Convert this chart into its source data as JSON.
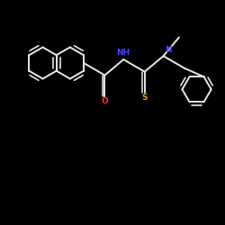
{
  "bg": "#000000",
  "bond": "#e8e8e8",
  "NH_color": "#4444ff",
  "N_color": "#4444ff",
  "O_color": "#ff3333",
  "S_color": "#ccaa00",
  "lw": 1.4,
  "r": 0.7,
  "figsize": [
    2.5,
    2.5
  ],
  "dpi": 100,
  "xlim": [
    0,
    10
  ],
  "ylim": [
    0,
    10
  ]
}
